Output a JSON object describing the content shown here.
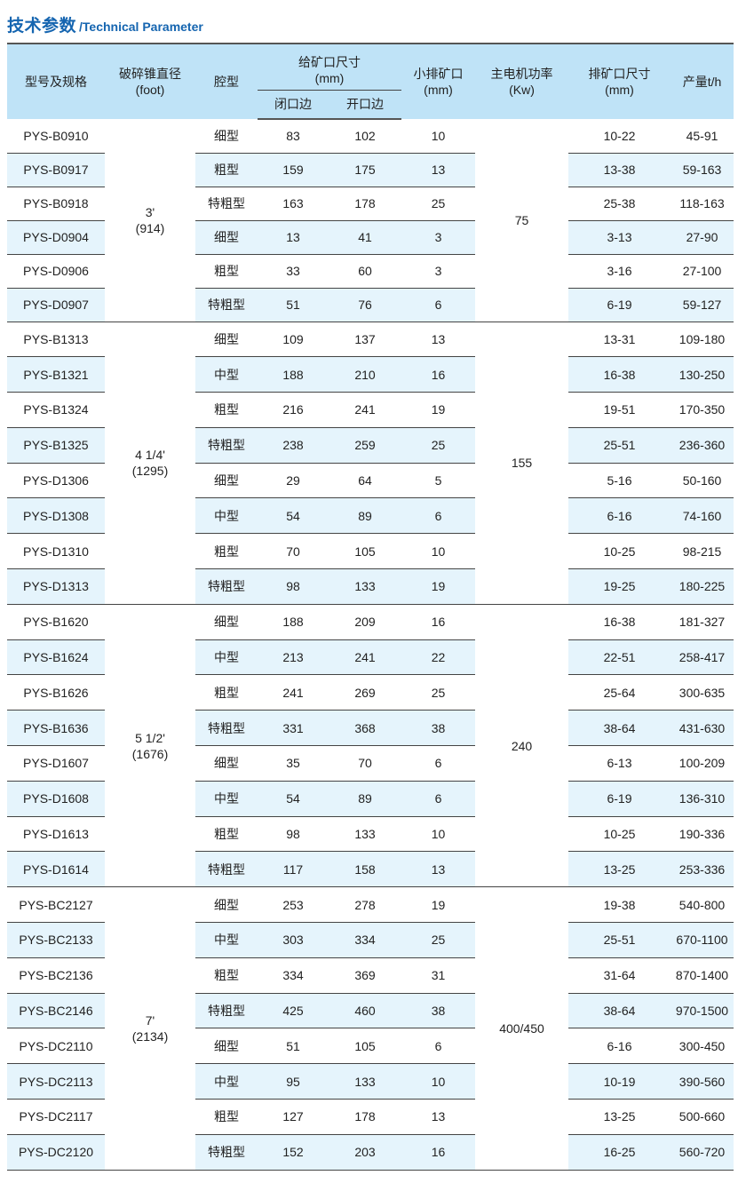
{
  "title": {
    "cn": "技术参数",
    "en": "/Technical Parameter"
  },
  "colors": {
    "title": "#1565b0",
    "header_bg": "#bfe3f7",
    "row_alt_bg": "#e5f4fc",
    "rule": "#444444"
  },
  "header": {
    "model": "型号及规格",
    "diameter": "破碎锥直径",
    "diameter_unit": "(foot)",
    "cavity": "腔型",
    "feed": "给矿口尺寸",
    "feed_unit": "(mm)",
    "closed": "闭口边",
    "open": "开口边",
    "min_discharge": "小排矿口",
    "min_discharge_unit": "(mm)",
    "power": "主电机功率",
    "power_unit": "(Kw)",
    "discharge_range": "排矿口尺寸",
    "discharge_range_unit": "(mm)",
    "capacity": "产量t/h"
  },
  "groups": [
    {
      "diameter": "3'",
      "diameter_mm": "(914)",
      "power": "75",
      "rows": [
        [
          "PYS-B0910",
          "细型",
          "83",
          "102",
          "10",
          "10-22",
          "45-91"
        ],
        [
          "PYS-B0917",
          "粗型",
          "159",
          "175",
          "13",
          "13-38",
          "59-163"
        ],
        [
          "PYS-B0918",
          "特粗型",
          "163",
          "178",
          "25",
          "25-38",
          "118-163"
        ],
        [
          "PYS-D0904",
          "细型",
          "13",
          "41",
          "3",
          "3-13",
          "27-90"
        ],
        [
          "PYS-D0906",
          "粗型",
          "33",
          "60",
          "3",
          "3-16",
          "27-100"
        ],
        [
          "PYS-D0907",
          "特粗型",
          "51",
          "76",
          "6",
          "6-19",
          "59-127"
        ]
      ]
    },
    {
      "diameter": "4 1/4'",
      "diameter_mm": "(1295)",
      "power": "155",
      "rows": [
        [
          "PYS-B1313",
          "细型",
          "109",
          "137",
          "13",
          "13-31",
          "109-180"
        ],
        [
          "PYS-B1321",
          "中型",
          "188",
          "210",
          "16",
          "16-38",
          "130-250"
        ],
        [
          "PYS-B1324",
          "粗型",
          "216",
          "241",
          "19",
          "19-51",
          "170-350"
        ],
        [
          "PYS-B1325",
          "特粗型",
          "238",
          "259",
          "25",
          "25-51",
          "236-360"
        ],
        [
          "PYS-D1306",
          "细型",
          "29",
          "64",
          "5",
          "5-16",
          "50-160"
        ],
        [
          "PYS-D1308",
          "中型",
          "54",
          "89",
          "6",
          "6-16",
          "74-160"
        ],
        [
          "PYS-D1310",
          "粗型",
          "70",
          "105",
          "10",
          "10-25",
          "98-215"
        ],
        [
          "PYS-D1313",
          "特粗型",
          "98",
          "133",
          "19",
          "19-25",
          "180-225"
        ]
      ]
    },
    {
      "diameter": "5 1/2'",
      "diameter_mm": "(1676)",
      "power": "240",
      "rows": [
        [
          "PYS-B1620",
          "细型",
          "188",
          "209",
          "16",
          "16-38",
          "181-327"
        ],
        [
          "PYS-B1624",
          "中型",
          "213",
          "241",
          "22",
          "22-51",
          "258-417"
        ],
        [
          "PYS-B1626",
          "粗型",
          "241",
          "269",
          "25",
          "25-64",
          "300-635"
        ],
        [
          "PYS-B1636",
          "特粗型",
          "331",
          "368",
          "38",
          "38-64",
          "431-630"
        ],
        [
          "PYS-D1607",
          "细型",
          "35",
          "70",
          "6",
          "6-13",
          "100-209"
        ],
        [
          "PYS-D1608",
          "中型",
          "54",
          "89",
          "6",
          "6-19",
          "136-310"
        ],
        [
          "PYS-D1613",
          "粗型",
          "98",
          "133",
          "10",
          "10-25",
          "190-336"
        ],
        [
          "PYS-D1614",
          "特粗型",
          "117",
          "158",
          "13",
          "13-25",
          "253-336"
        ]
      ]
    },
    {
      "diameter": "7'",
      "diameter_mm": "(2134)",
      "power": "400/450",
      "rows": [
        [
          "PYS-BC2127",
          "细型",
          "253",
          "278",
          "19",
          "19-38",
          "540-800"
        ],
        [
          "PYS-BC2133",
          "中型",
          "303",
          "334",
          "25",
          "25-51",
          "670-1100"
        ],
        [
          "PYS-BC2136",
          "粗型",
          "334",
          "369",
          "31",
          "31-64",
          "870-1400"
        ],
        [
          "PYS-BC2146",
          "特粗型",
          "425",
          "460",
          "38",
          "38-64",
          "970-1500"
        ],
        [
          "PYS-DC2110",
          "细型",
          "51",
          "105",
          "6",
          "6-16",
          "300-450"
        ],
        [
          "PYS-DC2113",
          "中型",
          "95",
          "133",
          "10",
          "10-19",
          "390-560"
        ],
        [
          "PYS-DC2117",
          "粗型",
          "127",
          "178",
          "13",
          "13-25",
          "500-660"
        ],
        [
          "PYS-DC2120",
          "特粗型",
          "152",
          "203",
          "16",
          "16-25",
          "560-720"
        ]
      ]
    }
  ]
}
